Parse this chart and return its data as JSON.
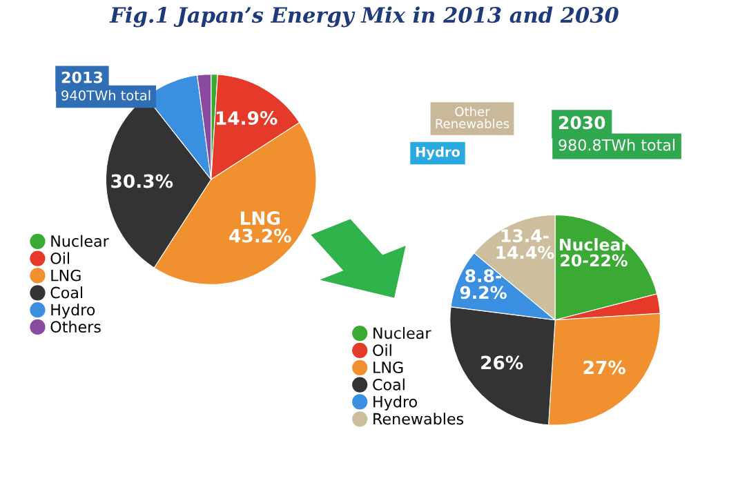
{
  "chart_data": [
    {
      "type": "pie",
      "title": "Fig.1 Japan’s Energy Mix in 2013 and 2030",
      "categories": [
        "Nuclear",
        "Oil",
        "LNG",
        "Coal",
        "Hydro",
        "Others"
      ],
      "values": [
        1,
        14.9,
        43.2,
        30.3,
        8.5,
        2.1
      ],
      "colors": [
        "#3aaa35",
        "#e53a2a",
        "#f0902e",
        "#333333",
        "#3a8fe0",
        "#8a4aa0"
      ],
      "value_labels": [
        null,
        "14.9%",
        "LNG\n43.2%",
        "30.3%",
        null,
        null
      ],
      "legend": "bottom left",
      "annotations": [
        "2013",
        "940TWh total"
      ]
    },
    {
      "type": "pie",
      "categories": [
        "Nuclear",
        "Oil",
        "LNG",
        "Coal",
        "Hydro",
        "Renewables"
      ],
      "values": [
        21,
        3,
        27,
        26,
        9,
        14
      ],
      "colors": [
        "#3aaa35",
        "#e53a2a",
        "#f0902e",
        "#333333",
        "#3a8fe0",
        "#cdbf9e"
      ],
      "value_labels": [
        null,
        null,
        "27%",
        "26%",
        null,
        null
      ],
      "legend": "bottom left",
      "annotations": [
        "2030",
        "980.8TWh total",
        "Hydro",
        "Other Renewables",
        "Nuclear\n20-22%",
        "8.8-\n9.2%",
        "13.4-\n14.4%"
      ]
    }
  ]
}
